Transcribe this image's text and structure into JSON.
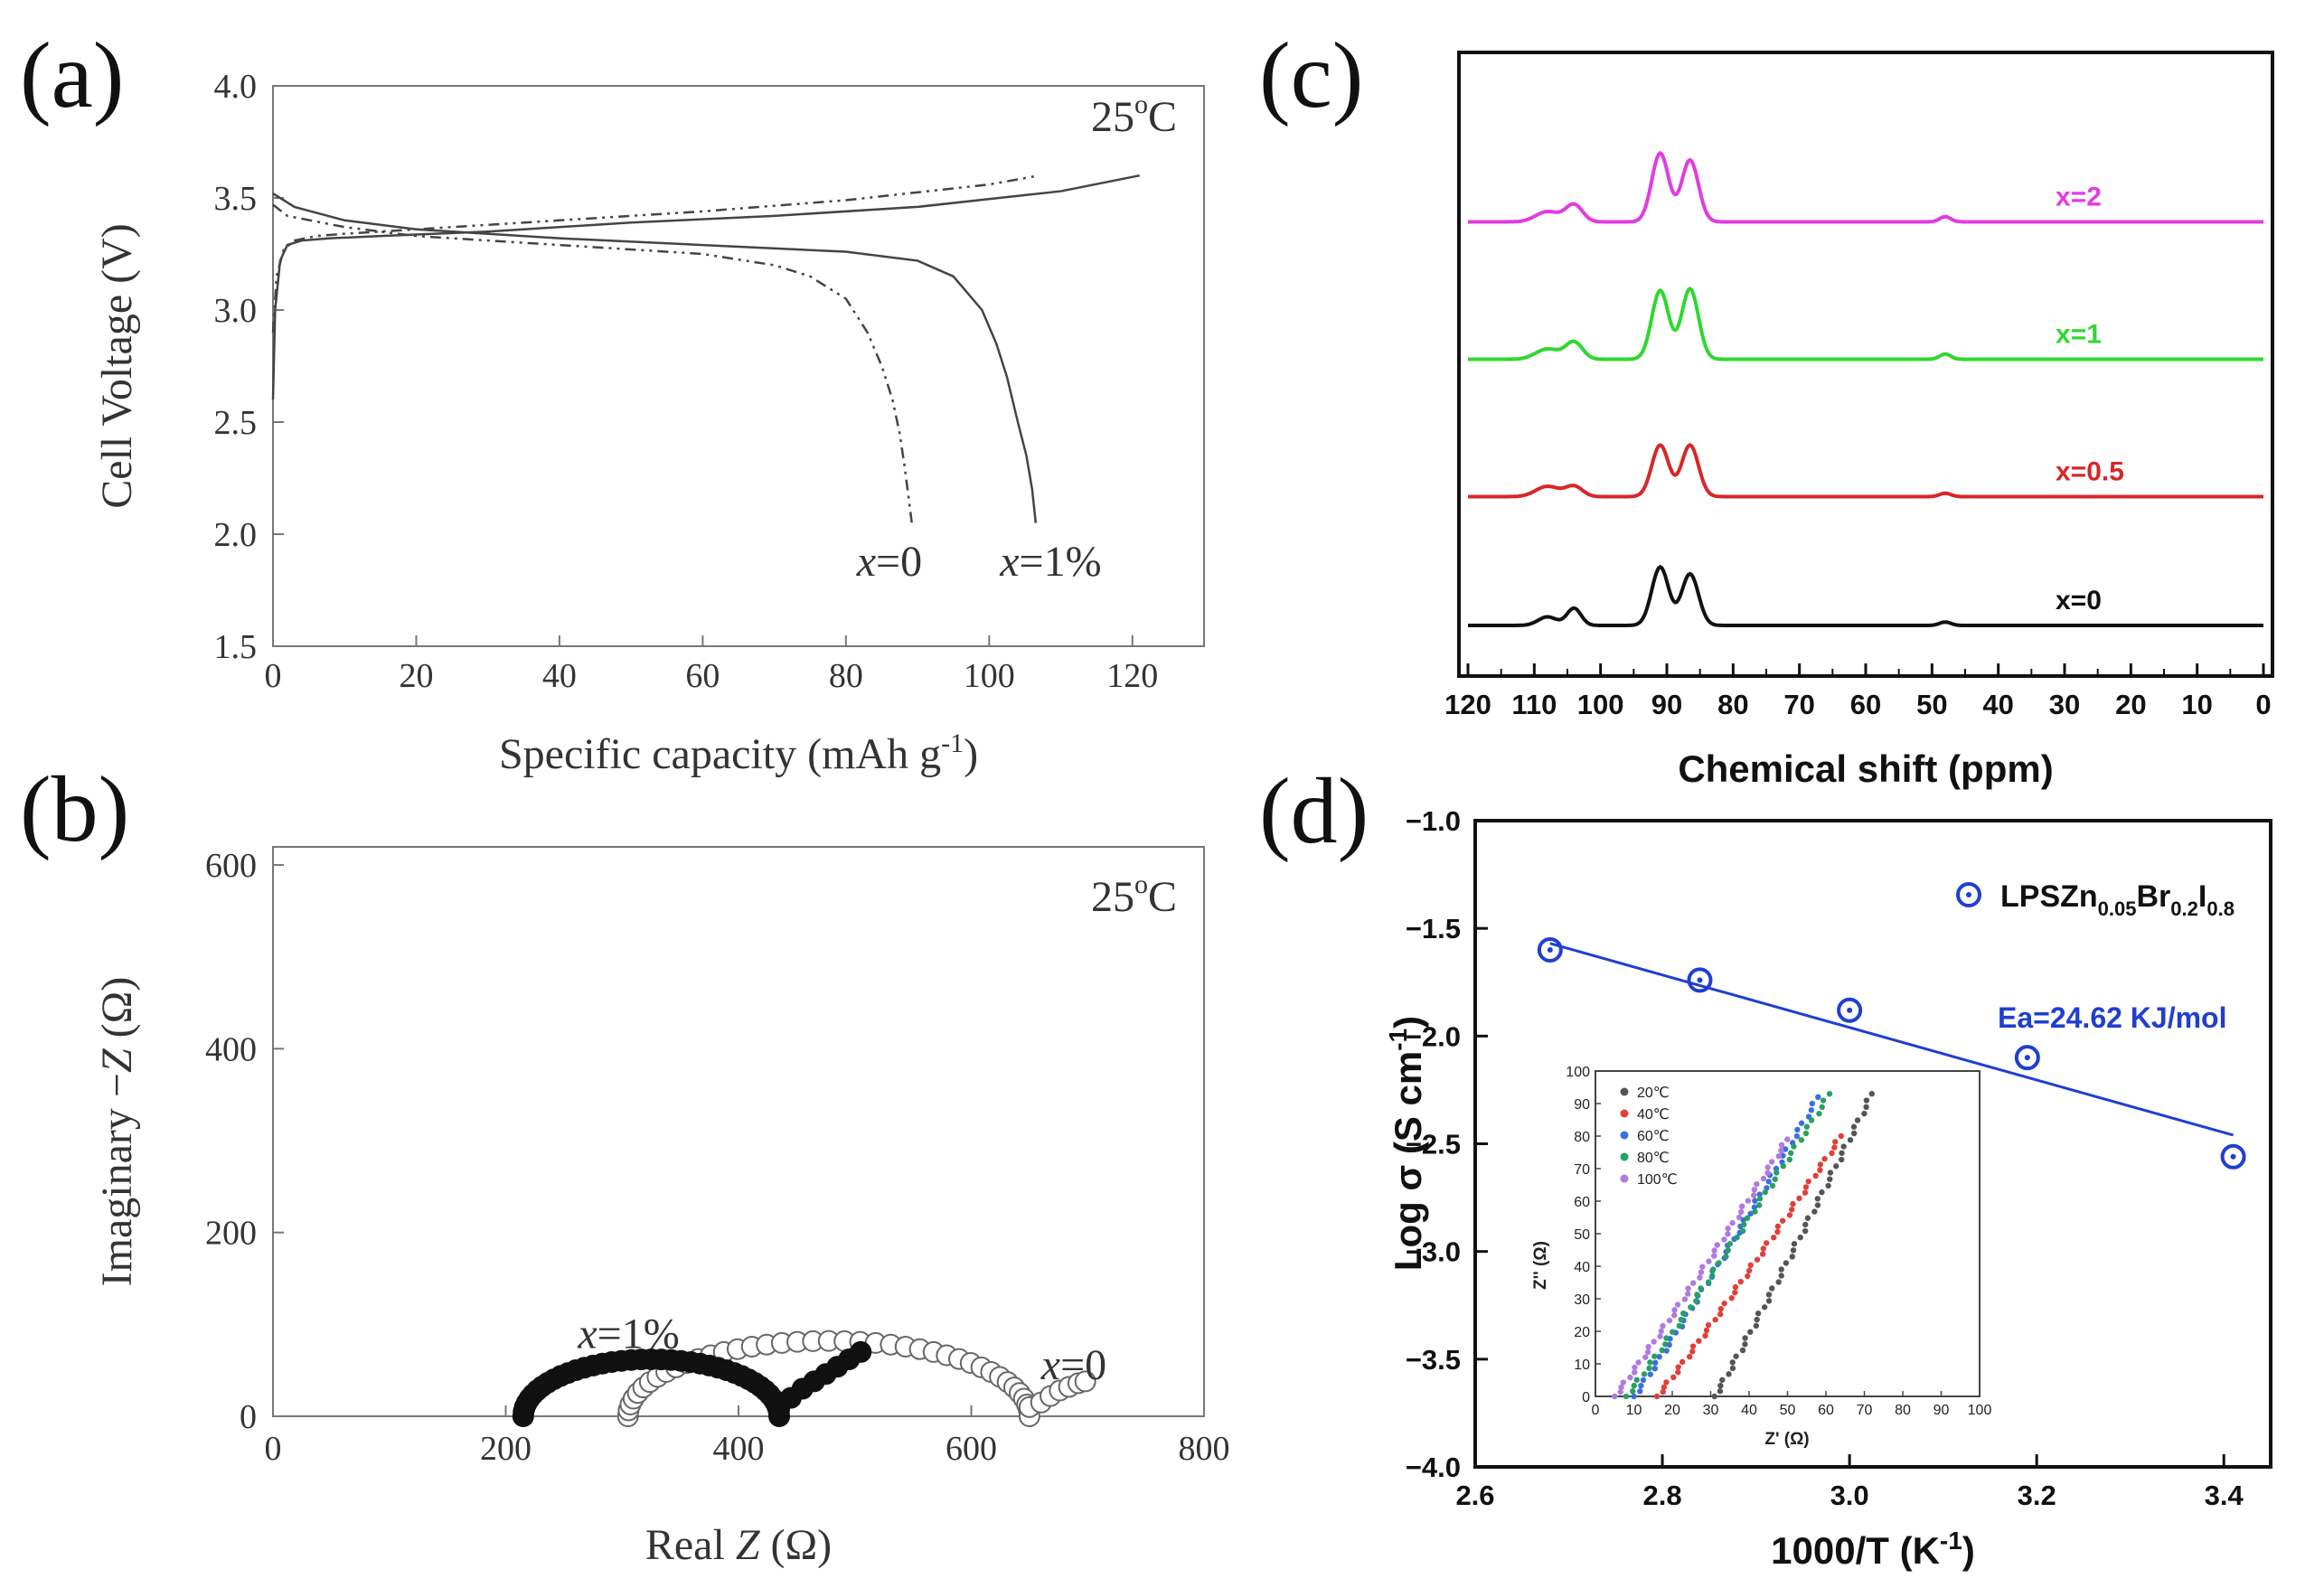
{
  "figure": {
    "panel_labels": [
      "(a)",
      "(b)",
      "(c)",
      "(d)"
    ]
  },
  "chart_data": [
    {
      "id": "a",
      "type": "line",
      "panel_label": "(a)",
      "annotation": "25 °C",
      "temp_number": "25",
      "temp_unit": "C",
      "xlabel": "Specific capacity   (mAh g",
      "xlabel_sup": "-1",
      "xlabel_close": ")",
      "ylabel": "Cell Voltage  (V)",
      "xlim": [
        0,
        130
      ],
      "ylim": [
        1.5,
        4.0
      ],
      "xticks": [
        0,
        20,
        40,
        60,
        80,
        100,
        120
      ],
      "yticks": [
        1.5,
        2.0,
        2.5,
        3.0,
        3.5,
        4.0
      ],
      "series": [
        {
          "name": "x=0 discharge",
          "style": "dashdot",
          "x": [
            0,
            2,
            10,
            20,
            40,
            60,
            70,
            75,
            80,
            83,
            85,
            86.5,
            87.5,
            88.2,
            88.8,
            89.2
          ],
          "y": [
            3.47,
            3.42,
            3.37,
            3.33,
            3.29,
            3.25,
            3.2,
            3.15,
            3.05,
            2.9,
            2.75,
            2.6,
            2.45,
            2.3,
            2.15,
            2.05
          ]
        },
        {
          "name": "x=0 charge",
          "style": "dashdot",
          "x": [
            0,
            0.5,
            1.5,
            3,
            6,
            10,
            20,
            40,
            60,
            80,
            100,
            107
          ],
          "y": [
            2.9,
            3.15,
            3.27,
            3.31,
            3.33,
            3.34,
            3.36,
            3.4,
            3.44,
            3.49,
            3.56,
            3.6
          ]
        },
        {
          "name": "x=1% discharge",
          "style": "solid",
          "x": [
            0,
            3,
            10,
            20,
            40,
            60,
            80,
            90,
            95,
            99,
            101,
            102.5,
            104,
            105.2,
            106,
            106.5
          ],
          "y": [
            3.52,
            3.46,
            3.4,
            3.36,
            3.32,
            3.29,
            3.26,
            3.22,
            3.15,
            3.0,
            2.85,
            2.7,
            2.5,
            2.35,
            2.2,
            2.05
          ]
        },
        {
          "name": "x=1% charge",
          "style": "solid",
          "x": [
            0,
            0.3,
            1,
            2,
            4,
            8,
            15,
            30,
            50,
            70,
            90,
            110,
            121
          ],
          "y": [
            2.6,
            3.0,
            3.22,
            3.29,
            3.31,
            3.32,
            3.33,
            3.35,
            3.39,
            3.42,
            3.46,
            3.53,
            3.6
          ]
        }
      ],
      "annotations": [
        {
          "var": "x",
          "rest": "=0",
          "x": 81.5,
          "y": 1.87
        },
        {
          "var": "x",
          "rest": "=1%",
          "x": 101.5,
          "y": 1.87
        }
      ]
    },
    {
      "id": "b",
      "type": "scatter",
      "panel_label": "(b)",
      "annotation": "25 °C",
      "temp_number": "25",
      "temp_unit": "C",
      "xlabel_pre": "Real ",
      "xlabel_var": "Z",
      "xlabel_unit": "   (Ω)",
      "ylabel_pre": "Imaginary  −",
      "ylabel_var": "Z",
      "ylabel_unit": "  (Ω)",
      "xlim": [
        0,
        800
      ],
      "ylim": [
        0,
        600
      ],
      "xticks": [
        0,
        200,
        400,
        600,
        800
      ],
      "yticks": [
        0,
        200,
        400,
        600
      ],
      "series": [
        {
          "name": "x=1%",
          "marker": "filled-circle",
          "arc": {
            "start": 215,
            "end": 435,
            "peak": 62
          },
          "tail": [
            [
              435,
              8
            ],
            [
              445,
              20
            ],
            [
              455,
              30
            ],
            [
              465,
              38
            ],
            [
              475,
              46
            ],
            [
              485,
              54
            ],
            [
              495,
              62
            ],
            [
              505,
              70
            ]
          ]
        },
        {
          "name": "x=0",
          "marker": "open-circle",
          "arc": {
            "start": 305,
            "end": 650,
            "peak": 82
          },
          "tail": [
            [
              650,
              10
            ],
            [
              660,
              15
            ],
            [
              668,
              22
            ],
            [
              676,
              28
            ],
            [
              684,
              32
            ],
            [
              692,
              36
            ],
            [
              698,
              38
            ]
          ]
        }
      ],
      "annotations": [
        {
          "var": "x",
          "rest": "=1%",
          "x": 262,
          "y": 88
        },
        {
          "var": "x",
          "rest": "=0",
          "x": 660,
          "y": 54
        }
      ]
    },
    {
      "id": "c",
      "type": "line",
      "panel_label": "(c)",
      "xlabel": "Chemical shift (ppm)",
      "xlim": [
        120,
        0
      ],
      "xticks": [
        120,
        110,
        100,
        90,
        80,
        70,
        60,
        50,
        40,
        30,
        20,
        10,
        0
      ],
      "series": [
        {
          "name": "x=0",
          "color": "#111111",
          "offset": 0.0,
          "peaks": [
            [
              108,
              0.05,
              2.0
            ],
            [
              104,
              0.1,
              1.5
            ],
            [
              91,
              0.34,
              1.8
            ],
            [
              86.5,
              0.3,
              1.8
            ],
            [
              48,
              0.02,
              1.2
            ]
          ]
        },
        {
          "name": "x=0.5",
          "color": "#d62728",
          "offset": 0.75,
          "peaks": [
            [
              108,
              0.06,
              2.5
            ],
            [
              104,
              0.06,
              1.8
            ],
            [
              91,
              0.3,
              1.8
            ],
            [
              86.5,
              0.3,
              1.8
            ],
            [
              48,
              0.02,
              1.2
            ]
          ]
        },
        {
          "name": "x=1",
          "color": "#2fd82f",
          "offset": 1.55,
          "peaks": [
            [
              108,
              0.06,
              2.5
            ],
            [
              104,
              0.1,
              1.8
            ],
            [
              91,
              0.4,
              1.8
            ],
            [
              86.5,
              0.41,
              1.8
            ],
            [
              48,
              0.03,
              1.2
            ]
          ]
        },
        {
          "name": "x=2",
          "color": "#e23be2",
          "offset": 2.35,
          "peaks": [
            [
              108,
              0.06,
              2.5
            ],
            [
              104,
              0.1,
              1.8
            ],
            [
              91,
              0.4,
              1.8
            ],
            [
              86.5,
              0.36,
              1.8
            ],
            [
              48,
              0.03,
              1.2
            ]
          ]
        }
      ]
    },
    {
      "id": "d",
      "type": "scatter",
      "panel_label": "(d)",
      "xlabel": "1000/T (K",
      "xlabel_sup": "-1",
      "xlabel_close": ")",
      "ylabel": "Log σ (S cm",
      "ylabel_sup": "-1",
      "ylabel_close": ")",
      "xlim": [
        2.6,
        3.45
      ],
      "ylim": [
        -4.0,
        -1.0
      ],
      "xticks": [
        2.6,
        2.8,
        3.0,
        3.2,
        3.4
      ],
      "yticks": [
        -1.0,
        -1.5,
        -2.0,
        -2.5,
        -3.0,
        -3.5,
        -4.0
      ],
      "legend": {
        "base": "LPSZn",
        "s1": "0.05",
        "mid": "Br",
        "s2": "0.2",
        "end": "I",
        "s3": "0.8"
      },
      "annotation": "Ea=24.62 KJ/mol",
      "points": {
        "x": [
          2.68,
          2.84,
          3.0,
          3.19,
          3.41
        ],
        "y": [
          -1.6,
          -1.74,
          -1.88,
          -2.1,
          -2.56
        ]
      },
      "fit": {
        "x": [
          2.68,
          3.41
        ],
        "y": [
          -1.57,
          -2.46
        ]
      },
      "inset": {
        "xlabel": "Z' (Ω)",
        "ylabel": "Z'' (Ω)",
        "xlim": [
          0,
          100
        ],
        "ylim": [
          0,
          100
        ],
        "xticks": [
          0,
          10,
          20,
          30,
          40,
          50,
          60,
          70,
          80,
          90,
          100
        ],
        "yticks": [
          0,
          10,
          20,
          30,
          40,
          50,
          60,
          70,
          80,
          90,
          100
        ],
        "series": [
          {
            "name": "20℃",
            "color": "#555555",
            "start": [
              31,
              0
            ],
            "end": [
              72,
              93
            ]
          },
          {
            "name": "40℃",
            "color": "#e0403a",
            "start": [
              16,
              0
            ],
            "end": [
              64,
              80
            ]
          },
          {
            "name": "60℃",
            "color": "#3a6fe0",
            "start": [
              10,
              0
            ],
            "end": [
              58,
              92
            ]
          },
          {
            "name": "80℃",
            "color": "#28a060",
            "start": [
              8,
              0
            ],
            "end": [
              61,
              93
            ]
          },
          {
            "name": "100℃",
            "color": "#b07ae0",
            "start": [
              5,
              0
            ],
            "end": [
              50,
              79
            ]
          }
        ]
      }
    }
  ]
}
